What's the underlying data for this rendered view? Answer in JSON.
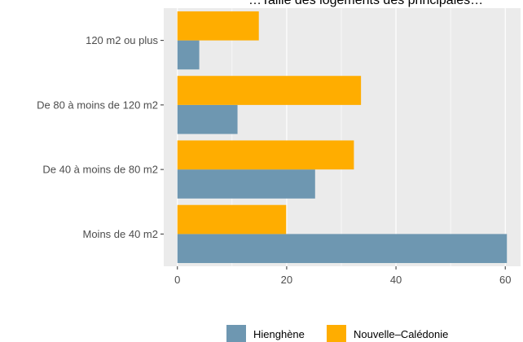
{
  "chart_data": {
    "type": "bar",
    "orientation": "horizontal",
    "title": "…Taille des logements des principales…",
    "categories": [
      "Moins de 40 m2",
      "De 40 à moins de 80 m2",
      "De 80 à moins de 120 m2",
      "120 m2 ou plus"
    ],
    "series": [
      {
        "name": "Hienghène",
        "color": "#6e97b1",
        "values": [
          60.3,
          25.2,
          11.0,
          4.0
        ]
      },
      {
        "name": "Nouvelle–Calédonie",
        "color": "#ffad00",
        "values": [
          19.9,
          32.3,
          33.6,
          14.9
        ]
      }
    ],
    "xlim": [
      -2.5,
      62.8
    ],
    "xticks": [
      0,
      20,
      40,
      60
    ],
    "grid": true,
    "legend_position": "bottom",
    "panel_background": "#ebebeb",
    "grid_color": "#ffffff"
  }
}
